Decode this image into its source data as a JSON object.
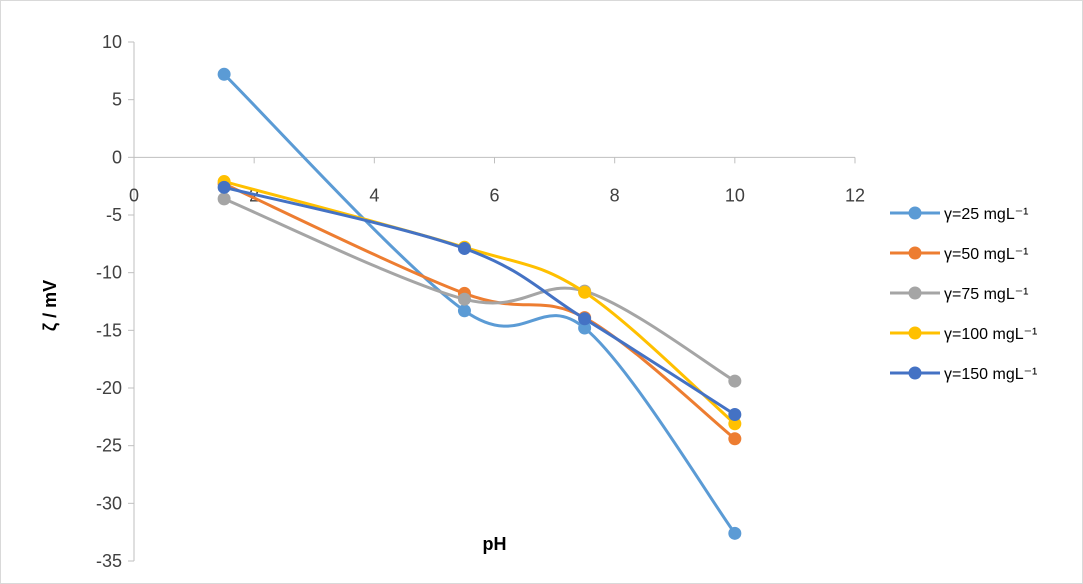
{
  "chart_data": {
    "type": "line",
    "title": "",
    "xlabel": "pH",
    "ylabel": "ζ / mV",
    "xlim": [
      0,
      12
    ],
    "ylim": [
      -35,
      10
    ],
    "x_ticks": [
      "0",
      "2",
      "4",
      "6",
      "8",
      "10",
      "12"
    ],
    "y_ticks": [
      "10",
      "5",
      "0",
      "-5",
      "-10",
      "-15",
      "-20",
      "-25",
      "-30",
      "-35"
    ],
    "grid": false,
    "smooth": true,
    "legend_position": "right",
    "series": [
      {
        "name": "γ=25 mgL⁻¹",
        "color": "#5b9bd5",
        "x": [
          1.5,
          5.5,
          7.5,
          10
        ],
        "y": [
          7.2,
          -13.3,
          -14.8,
          -32.6
        ]
      },
      {
        "name": "γ=50 mgL⁻¹",
        "color": "#ed7d31",
        "x": [
          1.5,
          5.5,
          7.5,
          10
        ],
        "y": [
          -2.3,
          -11.8,
          -13.9,
          -24.4
        ]
      },
      {
        "name": "γ=75 mgL⁻¹",
        "color": "#a5a5a5",
        "x": [
          1.5,
          5.5,
          7.5,
          10
        ],
        "y": [
          -3.6,
          -12.3,
          -11.6,
          -19.4
        ]
      },
      {
        "name": "γ=100 mgL⁻¹",
        "color": "#ffc000",
        "x": [
          1.5,
          5.5,
          7.5,
          10
        ],
        "y": [
          -2.1,
          -7.8,
          -11.7,
          -23.1
        ]
      },
      {
        "name": "γ=150 mgL⁻¹",
        "color": "#4472c4",
        "x": [
          1.5,
          5.5,
          7.5,
          10
        ],
        "y": [
          -2.6,
          -7.9,
          -14.0,
          -22.3
        ]
      }
    ]
  }
}
